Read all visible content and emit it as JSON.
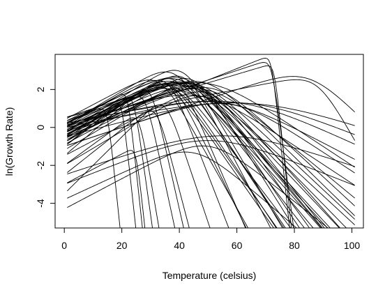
{
  "chart_data": {
    "type": "line",
    "title": "",
    "xlabel": "Temperature (celsius)",
    "ylabel": "ln(Growth Rate)",
    "xlim": [
      -3.2,
      104
    ],
    "ylim": [
      -5.3,
      3.85
    ],
    "x_ticks": [
      0,
      20,
      40,
      60,
      80,
      100
    ],
    "y_ticks": [
      -4,
      -2,
      0,
      2
    ],
    "grid": false,
    "legend": "none",
    "line_color": "#000000",
    "curve_model": "ln(rate) = a + b*T - log(1 + exp(c*(T - h)))",
    "t_range": [
      1,
      101
    ],
    "series": [
      {
        "a": 0.0,
        "b": 0.075,
        "c": 0.3,
        "h": 40
      },
      {
        "a": 0.3,
        "b": 0.07,
        "c": 0.25,
        "h": 42
      },
      {
        "a": -0.5,
        "b": 0.09,
        "c": 0.4,
        "h": 37
      },
      {
        "a": -1.0,
        "b": 0.11,
        "c": 0.5,
        "h": 36
      },
      {
        "a": 0.1,
        "b": 0.085,
        "c": 0.3,
        "h": 35
      },
      {
        "a": -0.2,
        "b": 0.08,
        "c": 0.28,
        "h": 38
      },
      {
        "a": -0.8,
        "b": 0.1,
        "c": 0.45,
        "h": 39
      },
      {
        "a": 0.2,
        "b": 0.06,
        "c": 0.2,
        "h": 44
      },
      {
        "a": -0.3,
        "b": 0.095,
        "c": 0.35,
        "h": 41
      },
      {
        "a": 0.0,
        "b": 0.065,
        "c": 0.22,
        "h": 45
      },
      {
        "a": -0.6,
        "b": 0.07,
        "c": 0.26,
        "h": 48
      },
      {
        "a": -0.1,
        "b": 0.055,
        "c": 0.18,
        "h": 50
      },
      {
        "a": -0.4,
        "b": 0.06,
        "c": 0.2,
        "h": 52
      },
      {
        "a": -1.2,
        "b": 0.09,
        "c": 0.3,
        "h": 46
      },
      {
        "a": 0.4,
        "b": 0.08,
        "c": 0.35,
        "h": 33
      },
      {
        "a": 0.0,
        "b": 0.05,
        "c": 0.15,
        "h": 47
      },
      {
        "a": -0.9,
        "b": 0.08,
        "c": 0.25,
        "h": 43
      },
      {
        "a": -0.7,
        "b": 0.075,
        "c": 0.3,
        "h": 46
      },
      {
        "a": 0.2,
        "b": 0.075,
        "c": 0.24,
        "h": 40
      },
      {
        "a": -0.3,
        "b": 0.068,
        "c": 0.25,
        "h": 43
      },
      {
        "a": 0.1,
        "b": 0.09,
        "c": 0.32,
        "h": 38
      },
      {
        "a": -0.5,
        "b": 0.085,
        "c": 0.28,
        "h": 41
      },
      {
        "a": -0.2,
        "b": 0.072,
        "c": 0.3,
        "h": 39
      },
      {
        "a": 0.3,
        "b": 0.058,
        "c": 0.2,
        "h": 46
      },
      {
        "a": -0.6,
        "b": 0.092,
        "c": 0.38,
        "h": 42
      },
      {
        "a": -0.4,
        "b": 0.078,
        "c": 0.26,
        "h": 44
      },
      {
        "a": 0.0,
        "b": 0.062,
        "c": 0.21,
        "h": 49
      },
      {
        "a": -0.8,
        "b": 0.088,
        "c": 0.33,
        "h": 45
      },
      {
        "a": 0.2,
        "b": 0.066,
        "c": 0.23,
        "h": 42
      },
      {
        "a": -0.3,
        "b": 0.083,
        "c": 0.3,
        "h": 36
      },
      {
        "a": -1.5,
        "b": 0.08,
        "c": 0.25,
        "h": 50
      },
      {
        "a": -2.0,
        "b": 0.09,
        "c": 0.25,
        "h": 48
      },
      {
        "a": 0.5,
        "b": 0.05,
        "c": 0.15,
        "h": 50
      },
      {
        "a": 0.2,
        "b": 0.03,
        "c": 0.1,
        "h": 60
      },
      {
        "a": 0.0,
        "b": 0.03,
        "c": 0.08,
        "h": 65
      },
      {
        "a": -0.5,
        "b": 0.04,
        "c": 0.1,
        "h": 62
      },
      {
        "a": -2.5,
        "b": 0.05,
        "c": 0.1,
        "h": 55
      },
      {
        "a": -3.0,
        "b": 0.06,
        "c": 0.12,
        "h": 50
      },
      {
        "a": -3.8,
        "b": 0.07,
        "c": 0.2,
        "h": 45
      },
      {
        "a": -4.3,
        "b": 0.08,
        "c": 0.2,
        "h": 50
      },
      {
        "a": -0.2,
        "b": 0.04,
        "c": 0.12,
        "h": 55
      },
      {
        "a": -1.0,
        "b": 0.05,
        "c": 0.15,
        "h": 58
      },
      {
        "a": -0.5,
        "b": 0.1,
        "c": 1.5,
        "h": 20
      },
      {
        "a": 0.0,
        "b": 0.09,
        "c": 1.5,
        "h": 22
      },
      {
        "a": -1.0,
        "b": 0.12,
        "c": 1.2,
        "h": 24
      },
      {
        "a": -2.0,
        "b": 0.11,
        "c": 1.0,
        "h": 26
      },
      {
        "a": -1.5,
        "b": 0.13,
        "c": 0.8,
        "h": 30
      },
      {
        "a": -0.8,
        "b": 0.1,
        "c": 0.8,
        "h": 28
      },
      {
        "a": -2.5,
        "b": 0.12,
        "c": 0.7,
        "h": 32
      },
      {
        "a": -3.0,
        "b": 0.08,
        "c": 1.5,
        "h": 25
      },
      {
        "a": 0.5,
        "b": 0.04,
        "c": 1.5,
        "h": 15
      },
      {
        "a": -3.5,
        "b": 0.15,
        "c": 0.6,
        "h": 35
      },
      {
        "a": 0.0,
        "b": 0.05,
        "c": 1.2,
        "h": 72
      },
      {
        "a": -0.5,
        "b": 0.06,
        "c": 1.5,
        "h": 72
      },
      {
        "a": 0.2,
        "b": 0.03,
        "c": 0.3,
        "h": 88
      },
      {
        "a": -1.0,
        "b": 0.05,
        "c": 0.2,
        "h": 85
      },
      {
        "a": 0.1,
        "b": 0.045,
        "c": 1.5,
        "h": 73
      }
    ]
  }
}
